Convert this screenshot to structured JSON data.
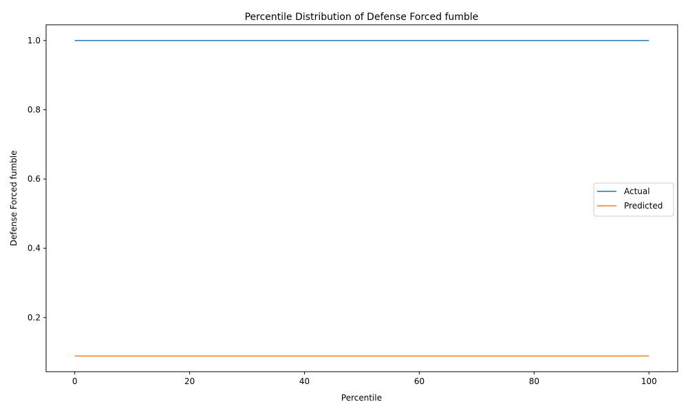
{
  "chart_data": {
    "type": "line",
    "title": "Percentile Distribution of Defense Forced fumble",
    "xlabel": "Percentile",
    "ylabel": "Defense Forced fumble",
    "xlim": [
      -5,
      105
    ],
    "ylim": [
      0.0435,
      1.0455
    ],
    "xticks": [
      0,
      20,
      40,
      60,
      80,
      100
    ],
    "yticks": [
      0.2,
      0.4,
      0.6,
      0.8,
      1.0
    ],
    "xtick_labels": [
      "0",
      "20",
      "40",
      "60",
      "80",
      "100"
    ],
    "ytick_labels": [
      "0.2",
      "0.4",
      "0.6",
      "0.8",
      "1.0"
    ],
    "grid": false,
    "legend_position": "center-right",
    "series": [
      {
        "name": "Actual",
        "color": "#1f77b4",
        "x": [
          0,
          100
        ],
        "y": [
          1.0,
          1.0
        ]
      },
      {
        "name": "Predicted",
        "color": "#ff7f0e",
        "x": [
          0,
          100
        ],
        "y": [
          0.089,
          0.089
        ]
      }
    ]
  }
}
